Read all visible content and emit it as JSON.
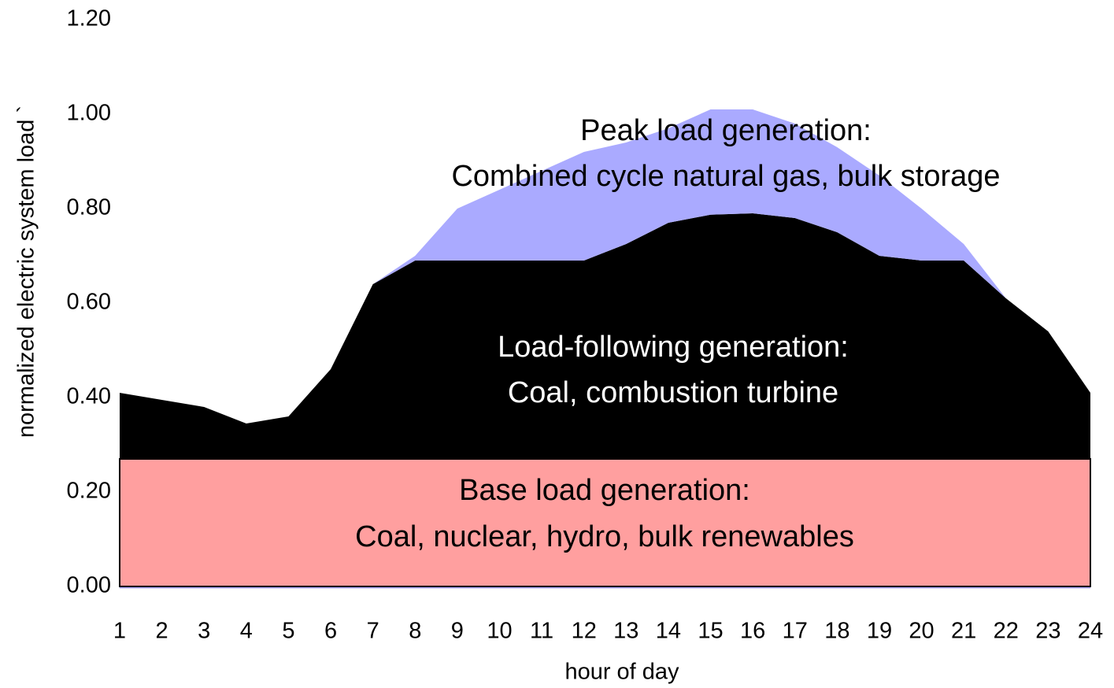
{
  "chart_data": {
    "type": "stacked_area",
    "x_label": "hour of day",
    "y_label": "normalized electric system load `",
    "x": [
      1,
      2,
      3,
      4,
      5,
      6,
      7,
      8,
      9,
      10,
      11,
      12,
      13,
      14,
      15,
      16,
      17,
      18,
      19,
      20,
      21,
      22,
      23,
      24
    ],
    "series": [
      {
        "color": "#ff9f9f",
        "values": [
          0.27,
          0.27,
          0.27,
          0.27,
          0.27,
          0.27,
          0.27,
          0.27,
          0.27,
          0.27,
          0.27,
          0.27,
          0.27,
          0.27,
          0.27,
          0.27,
          0.27,
          0.27,
          0.27,
          0.27,
          0.27,
          0.27,
          0.27,
          0.27
        ]
      },
      {
        "color": "#000000",
        "values": [
          0.14,
          0.125,
          0.11,
          0.075,
          0.09,
          0.19,
          0.37,
          0.42,
          0.42,
          0.42,
          0.42,
          0.42,
          0.455,
          0.5,
          0.517,
          0.52,
          0.51,
          0.48,
          0.43,
          0.42,
          0.42,
          0.34,
          0.27,
          0.14
        ]
      },
      {
        "color": "#aaaaff",
        "values": [
          0,
          0,
          0,
          0,
          0,
          0,
          0,
          0.01,
          0.11,
          0.15,
          0.19,
          0.23,
          0.215,
          0.2,
          0.223,
          0.22,
          0.2,
          0.18,
          0.17,
          0.11,
          0.035,
          0,
          0,
          0
        ]
      }
    ],
    "annotations": [
      "Peak load generation:",
      "Combined cycle natural gas, bulk storage",
      "Load-following generation:",
      "Coal, combustion turbine",
      "Base load generation:",
      "Coal, nuclear, hydro, bulk renewables"
    ],
    "xlim": [
      1,
      24
    ],
    "xticks": [
      1,
      2,
      3,
      4,
      5,
      6,
      7,
      8,
      9,
      10,
      11,
      12,
      13,
      14,
      15,
      16,
      17,
      18,
      19,
      20,
      21,
      22,
      23,
      24
    ],
    "ylim": [
      0,
      1.2
    ],
    "yticks": [
      {
        "value": 0,
        "label": "0.00"
      },
      {
        "value": 0.2,
        "label": "0.20"
      },
      {
        "value": 0.4,
        "label": "0.40"
      },
      {
        "value": 0.6,
        "label": "0.60"
      },
      {
        "value": 0.8,
        "label": "0.80"
      },
      {
        "value": 1.0,
        "label": "1.00"
      },
      {
        "value": 1.2,
        "label": "1.20"
      }
    ],
    "grid": false
  }
}
